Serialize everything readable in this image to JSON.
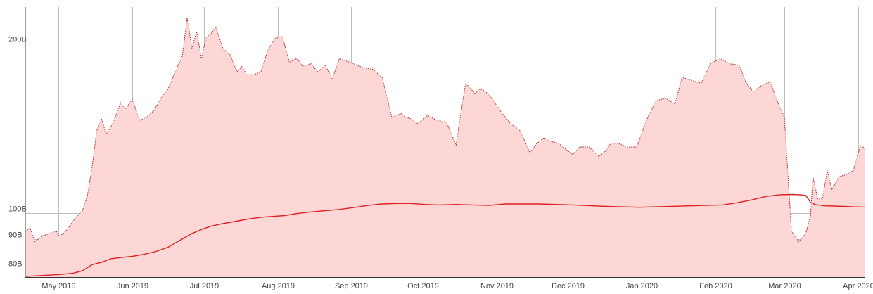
{
  "chart_data": {
    "type": "area",
    "title": "",
    "xlabel": "",
    "ylabel": "",
    "y_scale": "log",
    "ylim": [
      77,
      232
    ],
    "xlim": [
      "2019-04-17",
      "2020-04-04"
    ],
    "grid": true,
    "legend": "none",
    "y_ticks": [
      {
        "value": 80,
        "label": "80B"
      },
      {
        "value": 90,
        "label": "90B"
      },
      {
        "value": 100,
        "label": "100B"
      },
      {
        "value": 200,
        "label": "200B"
      }
    ],
    "x_ticks": [
      {
        "date": "2019-05-01",
        "label": "May 2019"
      },
      {
        "date": "2019-06-01",
        "label": "Jun 2019"
      },
      {
        "date": "2019-07-01",
        "label": "Jul 2019"
      },
      {
        "date": "2019-08-01",
        "label": "Aug 2019"
      },
      {
        "date": "2019-09-01",
        "label": "Sep 2019"
      },
      {
        "date": "2019-10-01",
        "label": "Oct 2019"
      },
      {
        "date": "2019-11-01",
        "label": "Nov 2019"
      },
      {
        "date": "2019-12-01",
        "label": "Dec 2019"
      },
      {
        "date": "2020-01-01",
        "label": "Jan 2020"
      },
      {
        "date": "2020-02-01",
        "label": "Feb 2020"
      },
      {
        "date": "2020-03-01",
        "label": "Mar 2020"
      },
      {
        "date": "2020-04-01",
        "label": "Apr 2020"
      }
    ],
    "colors": {
      "fill": "#fdd6d6",
      "upper_line": "#b02a2a",
      "lower_line": "#e02020",
      "grid": "#bdbdbd"
    },
    "series": [
      {
        "style": "dotted-area",
        "x": [
          "2019-04-17",
          "2019-04-19",
          "2019-04-21",
          "2019-04-24",
          "2019-04-27",
          "2019-04-30",
          "2019-05-01",
          "2019-05-03",
          "2019-05-05",
          "2019-05-08",
          "2019-05-11",
          "2019-05-13",
          "2019-05-15",
          "2019-05-17",
          "2019-05-19",
          "2019-05-21",
          "2019-05-24",
          "2019-05-27",
          "2019-05-29",
          "2019-06-01",
          "2019-06-04",
          "2019-06-07",
          "2019-06-10",
          "2019-06-13",
          "2019-06-16",
          "2019-06-19",
          "2019-06-22",
          "2019-06-24",
          "2019-06-26",
          "2019-06-28",
          "2019-06-30",
          "2019-07-02",
          "2019-07-04",
          "2019-07-06",
          "2019-07-09",
          "2019-07-12",
          "2019-07-15",
          "2019-07-17",
          "2019-07-19",
          "2019-07-22",
          "2019-07-25",
          "2019-07-28",
          "2019-07-31",
          "2019-08-03",
          "2019-08-06",
          "2019-08-09",
          "2019-08-12",
          "2019-08-15",
          "2019-08-18",
          "2019-08-21",
          "2019-08-24",
          "2019-08-27",
          "2019-08-30",
          "2019-09-02",
          "2019-09-06",
          "2019-09-10",
          "2019-09-14",
          "2019-09-18",
          "2019-09-22",
          "2019-09-24",
          "2019-09-26",
          "2019-09-29",
          "2019-10-03",
          "2019-10-07",
          "2019-10-11",
          "2019-10-15",
          "2019-10-19",
          "2019-10-23",
          "2019-10-25",
          "2019-10-27",
          "2019-10-30",
          "2019-11-03",
          "2019-11-07",
          "2019-11-11",
          "2019-11-15",
          "2019-11-18",
          "2019-11-21",
          "2019-11-24",
          "2019-11-27",
          "2019-11-30",
          "2019-12-03",
          "2019-12-06",
          "2019-12-10",
          "2019-12-14",
          "2019-12-17",
          "2019-12-19",
          "2019-12-22",
          "2019-12-26",
          "2019-12-30",
          "2020-01-03",
          "2020-01-07",
          "2020-01-11",
          "2020-01-15",
          "2020-01-18",
          "2020-01-22",
          "2020-01-26",
          "2020-01-30",
          "2020-02-03",
          "2020-02-07",
          "2020-02-11",
          "2020-02-14",
          "2020-02-17",
          "2020-02-20",
          "2020-02-24",
          "2020-02-27",
          "2020-03-01",
          "2020-03-04",
          "2020-03-07",
          "2020-03-10",
          "2020-03-12",
          "2020-03-13",
          "2020-03-15",
          "2020-03-17",
          "2020-03-19",
          "2020-03-21",
          "2020-03-24",
          "2020-03-27",
          "2020-03-30",
          "2020-04-02",
          "2020-04-04"
        ],
        "values": [
          93,
          94,
          89,
          91,
          92,
          93,
          91,
          92,
          94,
          98,
          101,
          107,
          120,
          140,
          147,
          138,
          145,
          157,
          153,
          159,
          146,
          148,
          152,
          160,
          166,
          178,
          190,
          222,
          196,
          210,
          188,
          205,
          208,
          214,
          196,
          191,
          178,
          182,
          176,
          176,
          178,
          195,
          204,
          206,
          185,
          188,
          182,
          184,
          178,
          183,
          173,
          188,
          186,
          184,
          181,
          180,
          174,
          148,
          150,
          148,
          147,
          144,
          149,
          146,
          145,
          132,
          170,
          163,
          166,
          165,
          160,
          151,
          144,
          140,
          128,
          133,
          136,
          134,
          133,
          130,
          127,
          131,
          131,
          126,
          129,
          133,
          133,
          131,
          131,
          146,
          158,
          160,
          156,
          174,
          172,
          170,
          184,
          188,
          184,
          183,
          170,
          164,
          168,
          171,
          158,
          148,
          93,
          89,
          92,
          99,
          116,
          106,
          106,
          119,
          110,
          116,
          117,
          119,
          132,
          130
        ]
      },
      {
        "style": "solid-line",
        "x": [
          "2019-04-17",
          "2019-04-24",
          "2019-05-01",
          "2019-05-07",
          "2019-05-11",
          "2019-05-15",
          "2019-05-19",
          "2019-05-23",
          "2019-05-27",
          "2019-06-01",
          "2019-06-06",
          "2019-06-11",
          "2019-06-16",
          "2019-06-21",
          "2019-06-26",
          "2019-06-30",
          "2019-07-04",
          "2019-07-09",
          "2019-07-14",
          "2019-07-19",
          "2019-07-24",
          "2019-07-29",
          "2019-08-04",
          "2019-08-09",
          "2019-08-15",
          "2019-08-21",
          "2019-08-27",
          "2019-09-02",
          "2019-09-08",
          "2019-09-14",
          "2019-09-20",
          "2019-09-26",
          "2019-10-02",
          "2019-10-08",
          "2019-10-15",
          "2019-10-22",
          "2019-10-29",
          "2019-11-05",
          "2019-11-12",
          "2019-11-19",
          "2019-11-26",
          "2019-12-03",
          "2019-12-10",
          "2019-12-17",
          "2019-12-24",
          "2019-12-31",
          "2020-01-07",
          "2020-01-14",
          "2020-01-21",
          "2020-01-28",
          "2020-02-04",
          "2020-02-10",
          "2020-02-16",
          "2020-02-22",
          "2020-02-28",
          "2020-03-05",
          "2020-03-08",
          "2020-03-10",
          "2020-03-12",
          "2020-03-14",
          "2020-03-18",
          "2020-03-22",
          "2020-03-26",
          "2020-03-30",
          "2020-04-04"
        ],
        "values": [
          77.2,
          77.5,
          77.8,
          78.2,
          79.0,
          81.0,
          81.8,
          83.0,
          83.4,
          83.8,
          84.5,
          85.5,
          87.0,
          89.5,
          92.0,
          93.5,
          94.8,
          95.8,
          96.6,
          97.5,
          98.2,
          98.6,
          99.0,
          99.8,
          100.5,
          101.0,
          101.5,
          102.3,
          103.2,
          103.8,
          104.0,
          104.0,
          103.6,
          103.4,
          103.6,
          103.4,
          103.2,
          103.8,
          103.8,
          103.8,
          103.6,
          103.4,
          103.1,
          102.8,
          102.6,
          102.4,
          102.6,
          102.8,
          103.0,
          103.2,
          103.4,
          104.3,
          105.5,
          107.0,
          107.8,
          107.9,
          107.7,
          107.5,
          104.5,
          103.5,
          103.0,
          102.9,
          102.8,
          102.6,
          102.5
        ]
      }
    ]
  }
}
